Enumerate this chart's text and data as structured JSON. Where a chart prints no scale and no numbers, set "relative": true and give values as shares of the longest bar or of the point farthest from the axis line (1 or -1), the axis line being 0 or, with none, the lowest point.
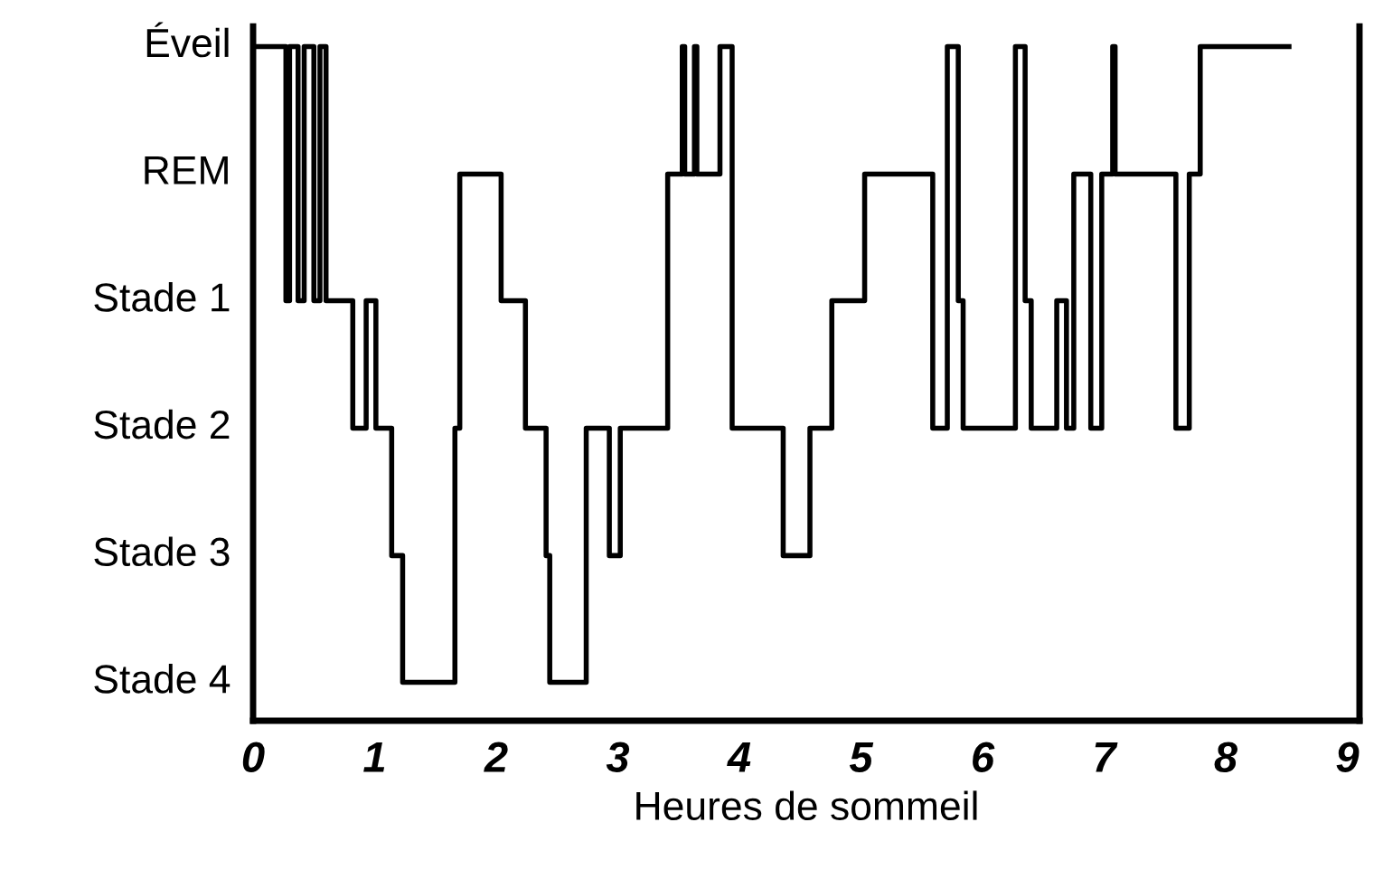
{
  "chart_data": {
    "type": "step",
    "xlabel": "Heures de sommeil",
    "relative": true,
    "x": [
      0,
      0.27,
      0.3,
      0.37,
      0.42,
      0.5,
      0.55,
      0.6,
      0.82,
      0.93,
      1.01,
      1.14,
      1.23,
      1.66,
      1.7,
      2.04,
      2.24,
      2.41,
      2.44,
      2.74,
      2.93,
      3.02,
      3.41,
      3.53,
      3.55,
      3.63,
      3.65,
      3.84,
      3.94,
      4.36,
      4.58,
      4.76,
      5.03,
      5.59,
      5.71,
      5.8,
      5.84,
      6.27,
      6.35,
      6.4,
      6.61,
      6.69,
      6.75,
      6.89,
      6.98,
      7.07,
      7.09,
      7.59,
      7.7,
      7.79,
      8.52
    ],
    "series": [
      {
        "color": "#000000",
        "values": [
          1,
          0.623,
          1,
          0.623,
          1,
          0.623,
          1,
          0.623,
          0.434,
          0.623,
          0.434,
          0.245,
          0.057,
          0.434,
          0.811,
          0.623,
          0.434,
          0.245,
          0.057,
          0.434,
          0.245,
          0.434,
          0.811,
          1,
          0.811,
          1,
          0.811,
          1,
          0.434,
          0.245,
          0.434,
          0.623,
          0.811,
          0.434,
          1,
          0.623,
          0.434,
          1,
          0.623,
          0.434,
          0.623,
          0.434,
          0.811,
          0.434,
          0.811,
          1,
          0.811,
          0.434,
          0.811,
          1,
          1
        ]
      }
    ],
    "xlim": [
      0,
      9.1
    ],
    "xticks": [
      0,
      1,
      2,
      3,
      4,
      5,
      6,
      7,
      8,
      9
    ],
    "annotations": [
      "Éveil",
      "REM",
      "Stade 1",
      "Stade 2",
      "Stade 3",
      "Stade 4"
    ],
    "grid": false,
    "legend": false,
    "marker": "none",
    "line_style": "solid"
  }
}
